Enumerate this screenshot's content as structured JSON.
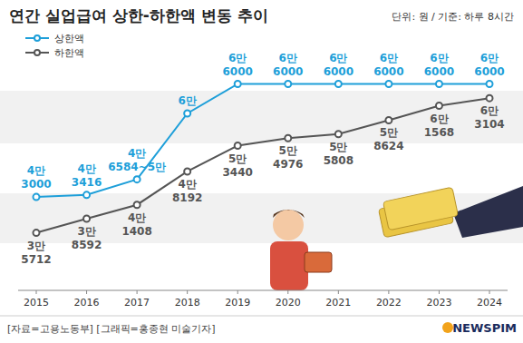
{
  "chart_data": {
    "type": "line",
    "title": "연간 실업급여 상한-하한액 변동 추이",
    "unit_note": "단위: 원 / 기준: 하루 8시간",
    "source": "[자료=고용노동부] [그래픽=홍종현 미술기자]",
    "logo": "NEWSPIM",
    "categories": [
      "2015",
      "2016",
      "2017",
      "2018",
      "2019",
      "2020",
      "2021",
      "2022",
      "2023",
      "2024"
    ],
    "ylim": [
      24000,
      72000
    ],
    "tick_labels": "x",
    "grid": false,
    "legend": "upper-left",
    "data_labels": true,
    "series": [
      {
        "name": "상한액",
        "color": "#1e9fd9",
        "marker": "circle",
        "line_style": "solid",
        "values": [
          43000,
          43416,
          46584,
          60000,
          66000,
          66000,
          66000,
          66000,
          66000,
          66000
        ],
        "value_labels": [
          "4만\n3000",
          "4만\n3416",
          "4만\n6584~5만",
          "6만",
          "6만\n6000",
          "6만\n6000",
          "6만\n6000",
          "6만\n6000",
          "6만\n6000",
          "6만\n6000"
        ]
      },
      {
        "name": "하한액",
        "color": "#555555",
        "marker": "circle",
        "line_style": "solid",
        "values": [
          35712,
          38592,
          41408,
          48192,
          53440,
          54976,
          55808,
          58624,
          61568,
          63104
        ],
        "value_labels": [
          "3만\n5712",
          "3만\n8592",
          "4만\n1408",
          "4만\n8192",
          "5만\n3440",
          "5만\n4976",
          "5만\n5808",
          "5만\n8624",
          "6만\n1568",
          "6만\n3104"
        ]
      }
    ]
  }
}
